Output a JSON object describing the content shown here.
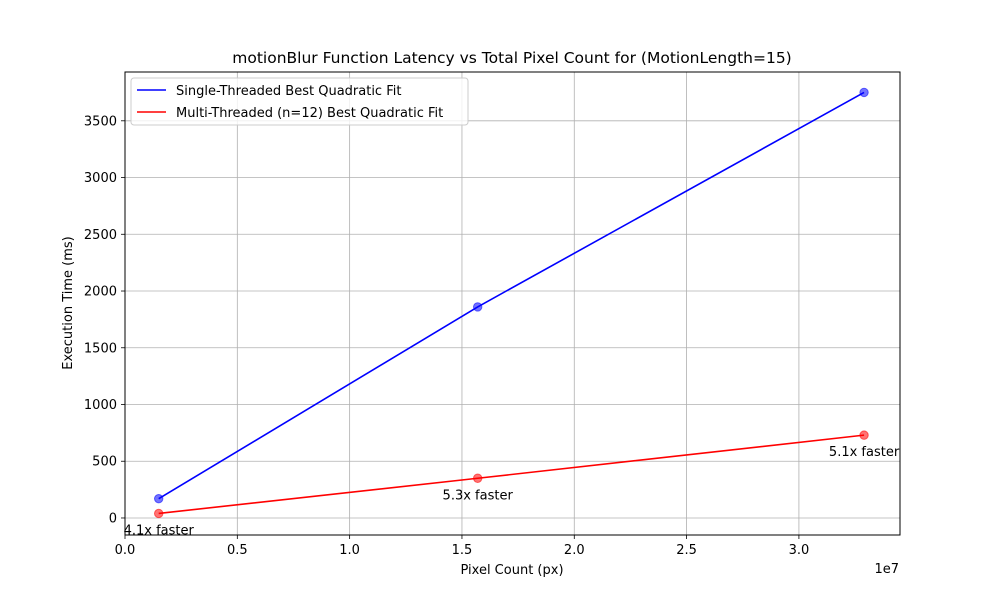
{
  "chart_data": {
    "type": "line",
    "title": "motionBlur Function Latency vs Total Pixel Count for (MotionLength=15)",
    "xlabel": "Pixel Count (px)",
    "ylabel": "Execution Time (ms)",
    "x_offset_label": "1e7",
    "xlim": [
      0,
      34500000
    ],
    "ylim": [
      -150,
      3930
    ],
    "xticks": [
      0,
      5000000,
      10000000,
      15000000,
      20000000,
      25000000,
      30000000
    ],
    "xtick_labels": [
      "0.0",
      "0.5",
      "1.0",
      "1.5",
      "2.0",
      "2.5",
      "3.0"
    ],
    "yticks": [
      0,
      500,
      1000,
      1500,
      2000,
      2500,
      3000,
      3500
    ],
    "ytick_labels": [
      "0",
      "500",
      "1000",
      "1500",
      "2000",
      "2500",
      "3000",
      "3500"
    ],
    "grid": true,
    "legend_position": "upper-left",
    "series": [
      {
        "name": "Single-Threaded Best Quadratic Fit",
        "color": "#0000ff",
        "x": [
          1500000,
          15700000,
          32900000
        ],
        "y": [
          170,
          1860,
          3750
        ]
      },
      {
        "name": "Multi-Threaded (n=12) Best Quadratic Fit",
        "color": "#ff0000",
        "x": [
          1500000,
          15700000,
          32900000
        ],
        "y": [
          40,
          350,
          730
        ]
      }
    ],
    "annotations": [
      {
        "text": "4.1x faster",
        "x": 1500000
      },
      {
        "text": "5.3x faster",
        "x": 15700000
      },
      {
        "text": "5.1x faster",
        "x": 32900000
      }
    ]
  }
}
